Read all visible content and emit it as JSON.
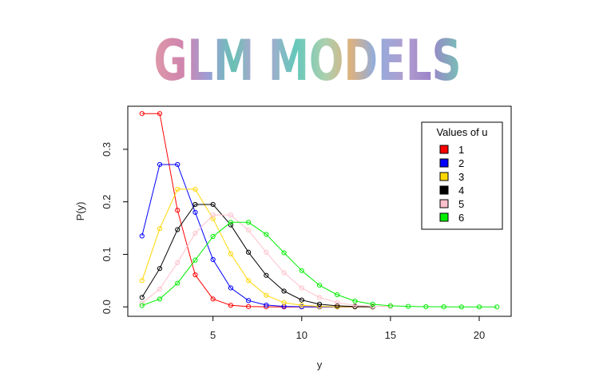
{
  "banner": {
    "title": "GLM MODELS"
  },
  "chart_data": {
    "type": "line",
    "xlabel": "y",
    "ylabel": "P(y)",
    "xlim": [
      0.2,
      21.8
    ],
    "ylim": [
      -0.018,
      0.382
    ],
    "xticks": [
      5,
      10,
      15,
      20
    ],
    "yticks": [
      0.0,
      0.1,
      0.2,
      0.3
    ],
    "ytick_labels": [
      "0.0",
      "0.1",
      "0.2",
      "0.3"
    ],
    "grid": false,
    "legend": {
      "title": "Values of u",
      "placement": "top-right"
    },
    "series": [
      {
        "name": "1",
        "color": "#ff0000",
        "x": [
          1,
          2,
          3,
          4,
          5,
          6,
          7,
          8,
          9,
          10,
          11,
          12,
          13,
          14
        ],
        "y": [
          0.368,
          0.368,
          0.184,
          0.061,
          0.015,
          0.003,
          0.0005,
          0.0001,
          0.0,
          0.0,
          0.0,
          0.0,
          0.0,
          0.0
        ]
      },
      {
        "name": "2",
        "color": "#0000ff",
        "x": [
          1,
          2,
          3,
          4,
          5,
          6,
          7,
          8,
          9,
          10,
          11,
          12,
          13,
          14
        ],
        "y": [
          0.135,
          0.271,
          0.271,
          0.18,
          0.09,
          0.036,
          0.012,
          0.0034,
          0.0009,
          0.0002,
          0.0,
          0.0,
          0.0,
          0.0
        ]
      },
      {
        "name": "3",
        "color": "#ffd700",
        "x": [
          1,
          2,
          3,
          4,
          5,
          6,
          7,
          8,
          9,
          10,
          11,
          12,
          13,
          14
        ],
        "y": [
          0.05,
          0.149,
          0.224,
          0.224,
          0.168,
          0.101,
          0.05,
          0.022,
          0.008,
          0.003,
          0.0008,
          0.0002,
          0.0001,
          0.0
        ]
      },
      {
        "name": "4",
        "color": "#000000",
        "x": [
          1,
          2,
          3,
          4,
          5,
          6,
          7,
          8,
          9,
          10,
          11,
          12,
          13,
          14
        ],
        "y": [
          0.018,
          0.073,
          0.147,
          0.195,
          0.195,
          0.156,
          0.104,
          0.06,
          0.03,
          0.013,
          0.005,
          0.002,
          0.0006,
          0.0002
        ]
      },
      {
        "name": "5",
        "color": "#ffc0cb",
        "x": [
          1,
          2,
          3,
          4,
          5,
          6,
          7,
          8,
          9,
          10,
          11,
          12,
          13,
          14,
          15
        ],
        "y": [
          0.007,
          0.034,
          0.084,
          0.14,
          0.175,
          0.175,
          0.146,
          0.104,
          0.065,
          0.036,
          0.018,
          0.008,
          0.003,
          0.001,
          0.0005
        ]
      },
      {
        "name": "6",
        "color": "#00ee00",
        "x": [
          1,
          2,
          3,
          4,
          5,
          6,
          7,
          8,
          9,
          10,
          11,
          12,
          13,
          14,
          15,
          16,
          17,
          18,
          19,
          20,
          21
        ],
        "y": [
          0.0025,
          0.015,
          0.045,
          0.089,
          0.134,
          0.161,
          0.161,
          0.138,
          0.103,
          0.069,
          0.041,
          0.023,
          0.011,
          0.005,
          0.002,
          0.0009,
          0.0003,
          0.0001,
          0.0,
          0.0,
          0.0
        ]
      }
    ]
  }
}
